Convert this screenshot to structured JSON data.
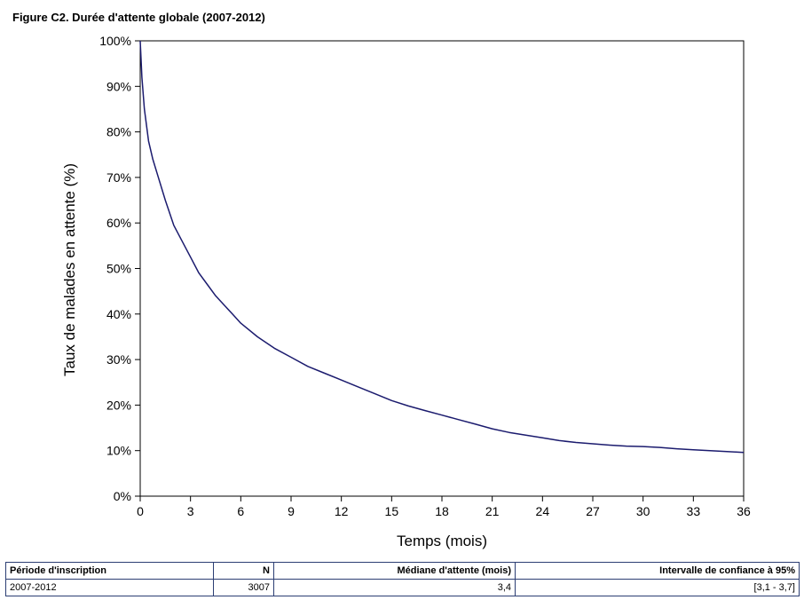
{
  "figure": {
    "title": "Figure C2. Durée d'attente globale (2007-2012)"
  },
  "chart_data": {
    "type": "line",
    "title": "Figure C2. Durée d'attente globale (2007-2012)",
    "xlabel": "Temps (mois)",
    "ylabel": "Taux de malades en attente (%)",
    "xlim": [
      0,
      36
    ],
    "ylim": [
      0,
      100
    ],
    "x_ticks": [
      "0",
      "3",
      "6",
      "9",
      "12",
      "15",
      "18",
      "21",
      "24",
      "27",
      "30",
      "33",
      "36"
    ],
    "y_ticks": [
      "0%",
      "10%",
      "20%",
      "30%",
      "40%",
      "50%",
      "60%",
      "70%",
      "80%",
      "90%",
      "100%"
    ],
    "grid": false,
    "line_color": "#1b1b6e",
    "series": [
      {
        "x": [
          0,
          0.1,
          0.25,
          0.5,
          0.75,
          1,
          1.5,
          2,
          2.5,
          3,
          3.5,
          4,
          4.5,
          5,
          5.5,
          6,
          7,
          8,
          9,
          10,
          11,
          12,
          13,
          14,
          15,
          16,
          17,
          18,
          19,
          20,
          21,
          22,
          23,
          24,
          25,
          26,
          27,
          28,
          29,
          30,
          31,
          32,
          33,
          34,
          35,
          36
        ],
        "y": [
          100,
          92,
          85,
          78,
          74,
          71,
          65,
          59.5,
          56,
          52.5,
          49,
          46.5,
          44,
          42,
          40,
          38,
          35,
          32.5,
          30.5,
          28.5,
          27,
          25.5,
          24,
          22.5,
          21,
          19.8,
          18.8,
          17.8,
          16.8,
          15.8,
          14.8,
          14,
          13.4,
          12.8,
          12.2,
          11.8,
          11.5,
          11.2,
          11,
          10.9,
          10.7,
          10.4,
          10.2,
          10,
          9.8,
          9.6
        ]
      }
    ]
  },
  "table": {
    "headers": [
      "Période d'inscription",
      "N",
      "Médiane d'attente (mois)",
      "Intervalle de confiance à 95%"
    ],
    "rows": [
      [
        "2007-2012",
        "3007",
        "3,4",
        "[3,1 - 3,7]"
      ]
    ]
  }
}
